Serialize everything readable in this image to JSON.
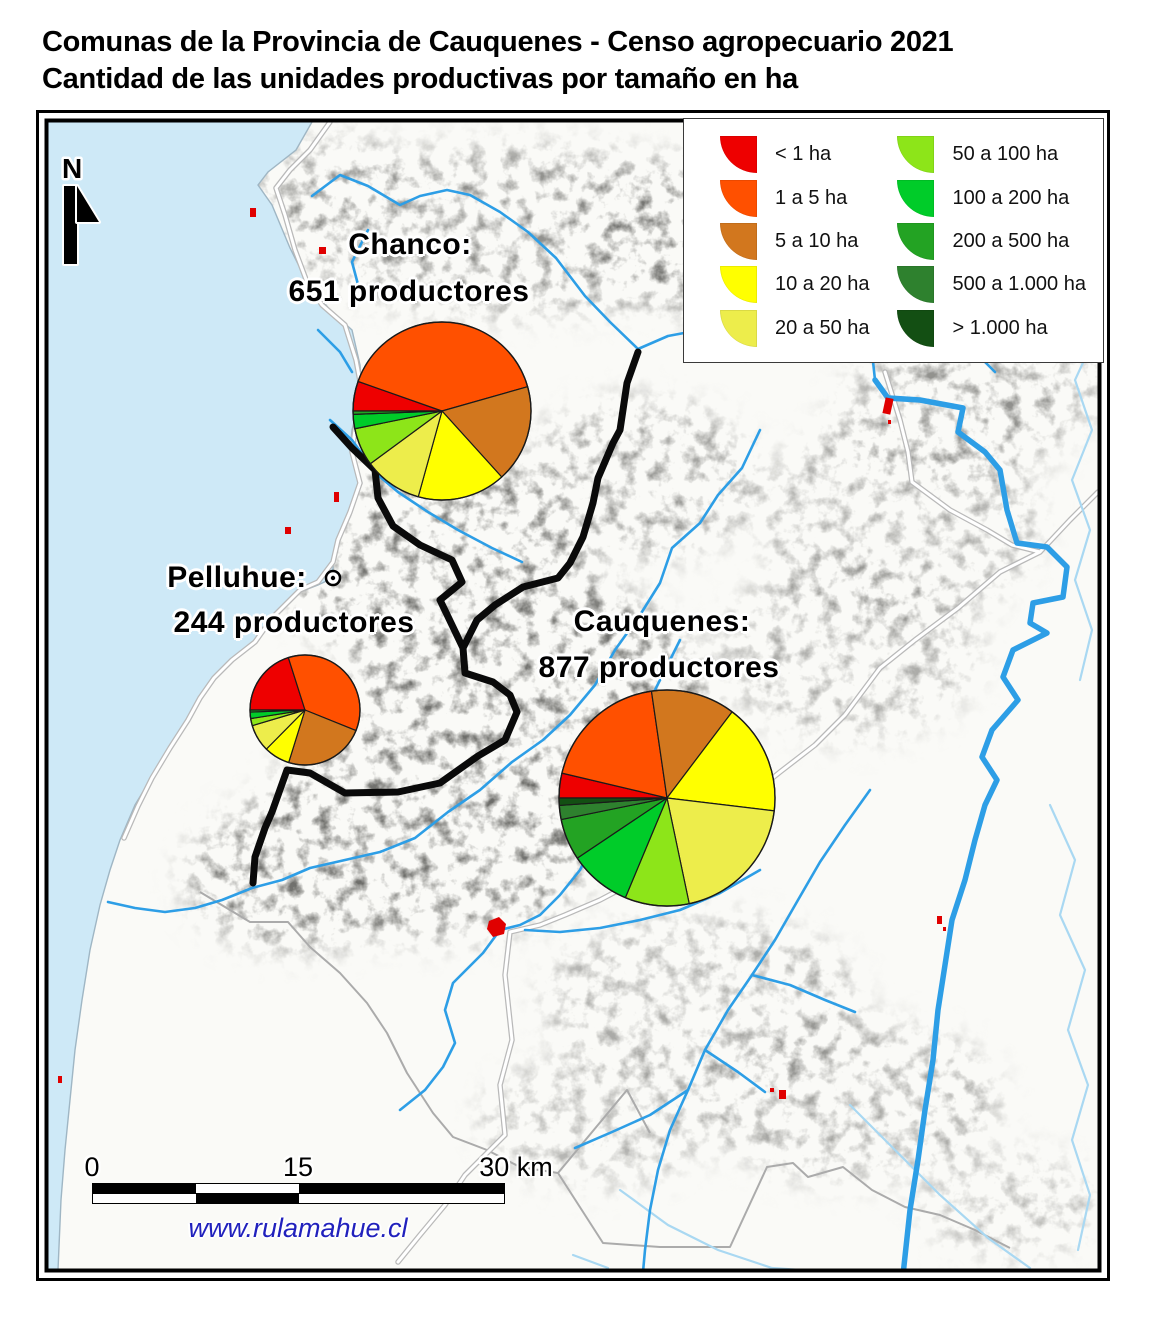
{
  "title": {
    "line1": "Comunas de la Provincia de Cauquenes - Censo agropecuario 2021",
    "line2": "Cantidad de las unidades productivas por tamaño en ha"
  },
  "north": {
    "label": "N"
  },
  "legend": {
    "items": [
      {
        "label": "< 1 ha",
        "color": "#ee0000"
      },
      {
        "label": "1 a 5 ha",
        "color": "#ff5000"
      },
      {
        "label": "5 a 10 ha",
        "color": "#d2771e"
      },
      {
        "label": "10 a 20 ha",
        "color": "#ffff00"
      },
      {
        "label": "20 a 50 ha",
        "color": "#eded4b"
      },
      {
        "label": "50 a 100 ha",
        "color": "#8de519"
      },
      {
        "label": "100 a 200 ha",
        "color": "#00cc29"
      },
      {
        "label": "200 a 500 ha",
        "color": "#23a323"
      },
      {
        "label": "500 a 1.000 ha",
        "color": "#2e812e"
      },
      {
        "label": "> 1.000 ha",
        "color": "#134f13"
      }
    ]
  },
  "chart_data": [
    {
      "type": "pie",
      "name": "Chanco",
      "label": "Chanco:",
      "sublabel": "651 productores",
      "productores": 651,
      "legend_position": "top-right box",
      "categories": [
        "< 1 ha",
        "1 a 5 ha",
        "5 a 10 ha",
        "10 a 20 ha",
        "20 a 50 ha",
        "50 a 100 ha",
        "100 a 200 ha",
        "200 a 500 ha",
        "500 a 1.000 ha",
        "> 1.000 ha"
      ],
      "values_pct": [
        5.4,
        40.2,
        17.7,
        16.0,
        10.6,
        6.9,
        2.6,
        0.6,
        0,
        0
      ],
      "start_angle_deg": 180,
      "direction": "clockwise"
    },
    {
      "type": "pie",
      "name": "Pelluhue",
      "label": "Pelluhue:",
      "sublabel": "244 productores",
      "productores": 244,
      "categories": [
        "< 1 ha",
        "1 a 5 ha",
        "5 a 10 ha",
        "10 a 20 ha",
        "20 a 50 ha",
        "50 a 100 ha",
        "100 a 200 ha",
        "200 a 500 ha",
        "500 a 1.000 ha",
        "> 1.000 ha"
      ],
      "values_pct": [
        20.1,
        36.0,
        23.7,
        7.6,
        8.0,
        2.1,
        1.9,
        0.6,
        0,
        0
      ],
      "start_angle_deg": 180,
      "direction": "clockwise"
    },
    {
      "type": "pie",
      "name": "Cauquenes",
      "label": "Cauquenes:",
      "sublabel": "877 productores",
      "productores": 877,
      "categories": [
        "< 1 ha",
        "1 a 5 ha",
        "5 a 10 ha",
        "10 a 20 ha",
        "20 a 50 ha",
        "50 a 100 ha",
        "100 a 200 ha",
        "200 a 500 ha",
        "500 a 1.000 ha",
        "> 1.000 ha"
      ],
      "values_pct": [
        3.7,
        19.0,
        12.6,
        16.6,
        19.8,
        9.6,
        9.3,
        6.2,
        2.1,
        1.1
      ],
      "start_angle_deg": 180,
      "direction": "clockwise"
    }
  ],
  "scalebar": {
    "start": "0",
    "mid": "15",
    "end": "30 km"
  },
  "credit": {
    "url": "www.rulamahue.cl"
  },
  "map_colors": {
    "ocean": "#cee9f7",
    "land": "#fafaf7",
    "river": "#2d9ee6",
    "river_light": "#a9d8f2",
    "road_fill": "#ffffff",
    "road_casing": "#b9b9b9",
    "comuna_boundary": "#0a0a0a",
    "region_boundary": "#ababab",
    "urban": "#e00000",
    "frame": "#000000"
  }
}
